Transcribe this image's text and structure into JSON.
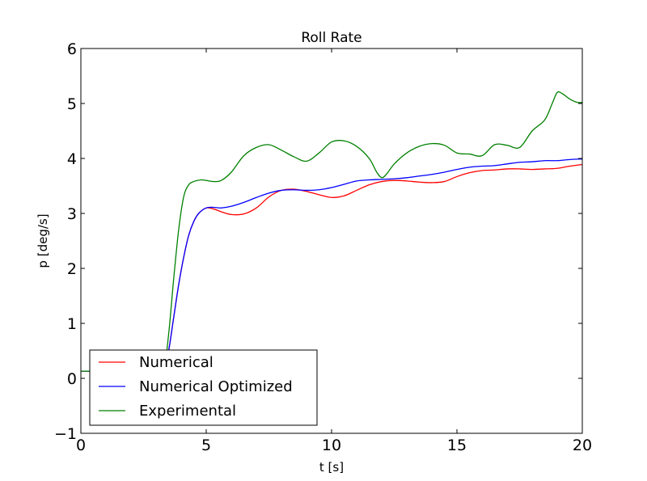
{
  "chart_data": {
    "type": "line",
    "title": "Roll Rate",
    "xlabel": "t [s]",
    "ylabel": "p [deg/s]",
    "xlim": [
      0,
      20
    ],
    "ylim": [
      -1,
      6
    ],
    "x_ticks": [
      {
        "value": 0,
        "label": "0"
      },
      {
        "value": 5,
        "label": "5"
      },
      {
        "value": 10,
        "label": "10"
      },
      {
        "value": 15,
        "label": "15"
      },
      {
        "value": 20,
        "label": "20"
      }
    ],
    "y_ticks": [
      {
        "value": -1,
        "label": "−1"
      },
      {
        "value": 0,
        "label": "0"
      },
      {
        "value": 1,
        "label": "1"
      },
      {
        "value": 2,
        "label": "2"
      },
      {
        "value": 3,
        "label": "3"
      },
      {
        "value": 4,
        "label": "4"
      },
      {
        "value": 5,
        "label": "5"
      },
      {
        "value": 6,
        "label": "6"
      }
    ],
    "grid": false,
    "legend_position": "lower-left",
    "series": [
      {
        "name": "Numerical",
        "color": "#ff0000",
        "x": [
          0,
          2.8,
          3.0,
          3.3,
          3.5,
          3.7,
          3.9,
          4.1,
          4.3,
          4.5,
          4.7,
          5.0,
          5.3,
          5.6,
          6.0,
          6.5,
          7.0,
          7.5,
          8.0,
          8.5,
          9.0,
          9.5,
          10.0,
          10.5,
          11.0,
          11.5,
          12.0,
          12.5,
          13.0,
          13.5,
          14.0,
          14.5,
          15.0,
          15.5,
          16.0,
          16.5,
          17.0,
          17.5,
          18.0,
          18.5,
          19.0,
          19.5,
          20.0
        ],
        "values": [
          0.13,
          0.13,
          0.12,
          0.14,
          0.5,
          1.1,
          1.7,
          2.2,
          2.6,
          2.85,
          3.0,
          3.1,
          3.08,
          3.03,
          2.98,
          2.99,
          3.1,
          3.3,
          3.42,
          3.44,
          3.4,
          3.34,
          3.29,
          3.32,
          3.42,
          3.52,
          3.58,
          3.6,
          3.59,
          3.57,
          3.56,
          3.58,
          3.67,
          3.74,
          3.78,
          3.79,
          3.81,
          3.81,
          3.8,
          3.81,
          3.82,
          3.86,
          3.89
        ]
      },
      {
        "name": "Numerical Optimized",
        "color": "#0000ff",
        "x": [
          0,
          2.8,
          3.0,
          3.3,
          3.5,
          3.7,
          3.9,
          4.1,
          4.3,
          4.5,
          4.7,
          5.0,
          5.3,
          5.6,
          6.0,
          6.5,
          7.0,
          7.5,
          8.0,
          8.5,
          9.0,
          9.5,
          10.0,
          10.5,
          11.0,
          11.5,
          12.0,
          12.5,
          13.0,
          13.5,
          14.0,
          14.5,
          15.0,
          15.5,
          16.0,
          16.5,
          17.0,
          17.5,
          18.0,
          18.5,
          19.0,
          19.5,
          20.0
        ],
        "values": [
          0.13,
          0.13,
          0.12,
          0.14,
          0.5,
          1.1,
          1.7,
          2.2,
          2.6,
          2.85,
          3.0,
          3.1,
          3.11,
          3.1,
          3.13,
          3.2,
          3.29,
          3.37,
          3.42,
          3.43,
          3.42,
          3.43,
          3.47,
          3.53,
          3.59,
          3.61,
          3.62,
          3.63,
          3.65,
          3.68,
          3.71,
          3.75,
          3.8,
          3.84,
          3.86,
          3.87,
          3.9,
          3.93,
          3.94,
          3.96,
          3.96,
          3.98,
          3.99
        ]
      },
      {
        "name": "Experimental",
        "color": "#008000",
        "x": [
          0,
          2.8,
          3.0,
          3.3,
          3.5,
          3.7,
          3.9,
          4.1,
          4.3,
          4.5,
          4.8,
          5.0,
          5.3,
          5.6,
          6.0,
          6.5,
          7.0,
          7.5,
          8.0,
          8.5,
          9.0,
          9.5,
          10.0,
          10.5,
          11.0,
          11.5,
          11.8,
          12.0,
          12.2,
          12.5,
          13.0,
          13.5,
          14.0,
          14.5,
          15.0,
          15.5,
          16.0,
          16.5,
          17.0,
          17.5,
          18.0,
          18.5,
          18.8,
          19.0,
          19.2,
          19.5,
          19.8,
          20.0
        ],
        "values": [
          0.13,
          0.13,
          0.12,
          0.14,
          0.8,
          1.8,
          2.7,
          3.3,
          3.52,
          3.58,
          3.61,
          3.6,
          3.58,
          3.6,
          3.75,
          4.05,
          4.2,
          4.25,
          4.15,
          4.03,
          3.95,
          4.1,
          4.3,
          4.32,
          4.22,
          4.0,
          3.75,
          3.65,
          3.72,
          3.9,
          4.1,
          4.22,
          4.27,
          4.24,
          4.1,
          4.08,
          4.05,
          4.25,
          4.24,
          4.2,
          4.5,
          4.7,
          5.0,
          5.2,
          5.18,
          5.08,
          5.02,
          5.02
        ]
      }
    ]
  }
}
